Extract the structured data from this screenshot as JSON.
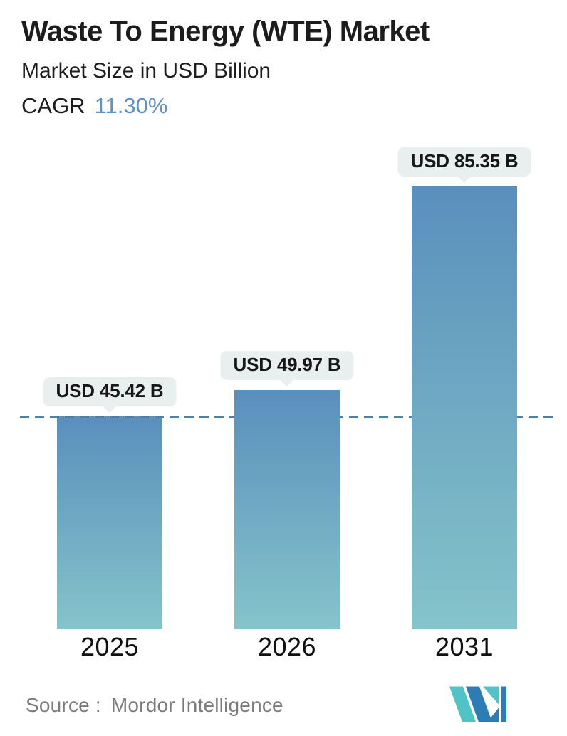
{
  "header": {
    "title": "Waste To Energy (WTE) Market",
    "subtitle": "Market Size in USD Billion",
    "cagr_label": "CAGR",
    "cagr_value": "11.30%"
  },
  "chart_data": {
    "type": "bar",
    "title": "Waste To Energy (WTE) Market",
    "subtitle": "Market Size in USD Billion",
    "unit": "USD Billion",
    "cagr_percent": 11.3,
    "categories": [
      "2025",
      "2026",
      "2031"
    ],
    "values": [
      45.42,
      49.97,
      85.35
    ],
    "labels": [
      "USD 45.42 B",
      "USD 49.97 B",
      "USD 85.35 B"
    ],
    "reference_line": {
      "value": 45.42,
      "style": "dashed",
      "color": "#4d7fa9"
    },
    "grid": false,
    "legend": false,
    "axis_lines": false,
    "bar_gradient_top": "#5a8fbc",
    "bar_gradient_bottom": "#84c4ca",
    "callout_bg": "#e9efee",
    "callout_text_color": "#171717",
    "accent_blue": "#5f92c2"
  },
  "footer": {
    "source_label": "Source :",
    "source_value": "Mordor Intelligence",
    "logo": {
      "name": "mordor-intelligence-logomark",
      "teal": "#4fc3c5",
      "blue": "#2d7cb5"
    }
  }
}
